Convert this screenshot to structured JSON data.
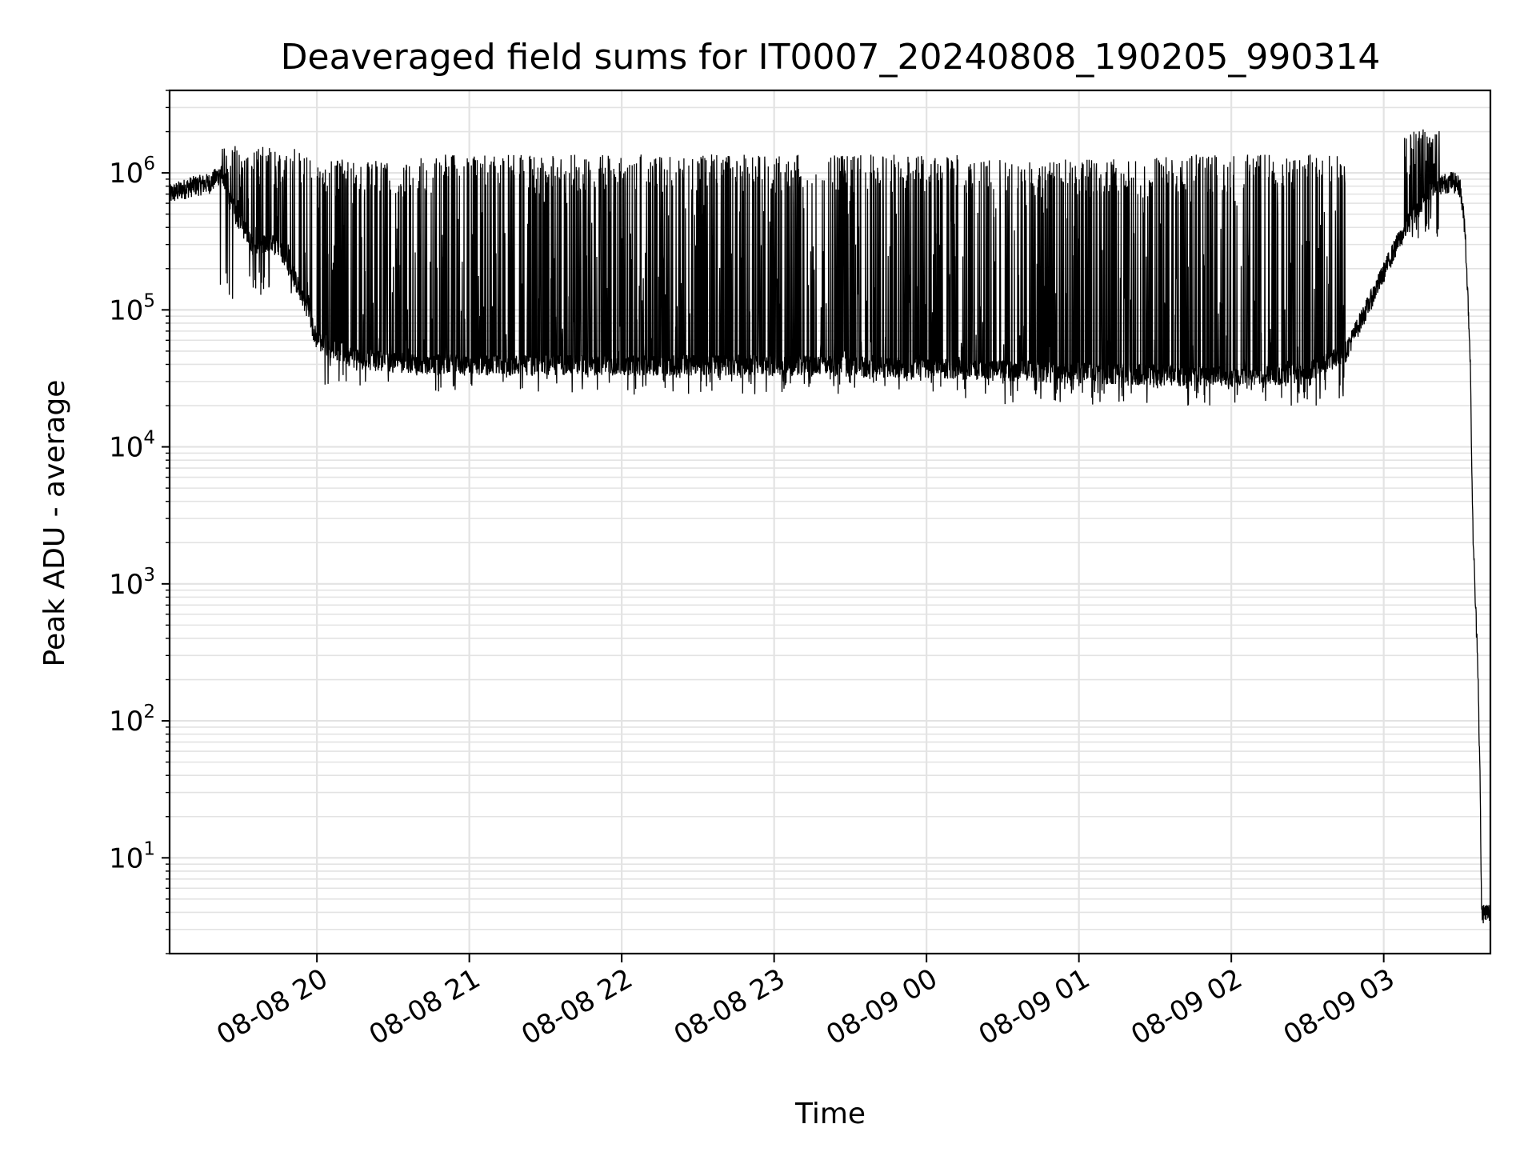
{
  "chart_data": {
    "type": "line",
    "title": "Deaveraged field sums for IT0007_20240808_190205_990314",
    "xlabel": "Time",
    "ylabel": "Peak ADU - average",
    "x_axis": {
      "kind": "time",
      "range": [
        "2024-08-08T19:02",
        "2024-08-09T03:42"
      ],
      "ticks": [
        {
          "t": "2024-08-08T20:00",
          "label": "08-08 20"
        },
        {
          "t": "2024-08-08T21:00",
          "label": "08-08 21"
        },
        {
          "t": "2024-08-08T22:00",
          "label": "08-08 22"
        },
        {
          "t": "2024-08-08T23:00",
          "label": "08-08 23"
        },
        {
          "t": "2024-08-09T00:00",
          "label": "08-09 00"
        },
        {
          "t": "2024-08-09T01:00",
          "label": "08-09 01"
        },
        {
          "t": "2024-08-09T02:00",
          "label": "08-09 02"
        },
        {
          "t": "2024-08-09T03:00",
          "label": "08-09 03"
        }
      ]
    },
    "y_axis": {
      "scale": "log",
      "range": [
        2,
        4000000
      ],
      "ticks": [
        {
          "value": 10,
          "base": "10",
          "exp": "1"
        },
        {
          "value": 100,
          "base": "10",
          "exp": "2"
        },
        {
          "value": 1000,
          "base": "10",
          "exp": "3"
        },
        {
          "value": 10000,
          "base": "10",
          "exp": "4"
        },
        {
          "value": 100000,
          "base": "10",
          "exp": "5"
        },
        {
          "value": 1000000,
          "base": "10",
          "exp": "6"
        }
      ]
    },
    "grid": true,
    "series": [
      {
        "color": "#000000",
        "baseline_points": [
          {
            "t": "2024-08-08T19:02",
            "y": 700000
          },
          {
            "t": "2024-08-08T19:10",
            "y": 800000
          },
          {
            "t": "2024-08-08T19:18",
            "y": 850000
          },
          {
            "t": "2024-08-08T19:22",
            "y": 1000000
          },
          {
            "t": "2024-08-08T19:28",
            "y": 500000
          },
          {
            "t": "2024-08-08T19:35",
            "y": 300000
          },
          {
            "t": "2024-08-08T19:45",
            "y": 300000
          },
          {
            "t": "2024-08-08T19:55",
            "y": 120000
          },
          {
            "t": "2024-08-08T20:00",
            "y": 60000
          },
          {
            "t": "2024-08-08T20:15",
            "y": 45000
          },
          {
            "t": "2024-08-08T20:30",
            "y": 42000
          },
          {
            "t": "2024-08-08T21:00",
            "y": 40000
          },
          {
            "t": "2024-08-08T22:00",
            "y": 40000
          },
          {
            "t": "2024-08-08T23:00",
            "y": 40000
          },
          {
            "t": "2024-08-09T00:00",
            "y": 38000
          },
          {
            "t": "2024-08-09T01:00",
            "y": 35000
          },
          {
            "t": "2024-08-09T02:00",
            "y": 33000
          },
          {
            "t": "2024-08-09T02:30",
            "y": 35000
          },
          {
            "t": "2024-08-09T02:45",
            "y": 50000
          },
          {
            "t": "2024-08-09T02:55",
            "y": 120000
          },
          {
            "t": "2024-08-09T03:05",
            "y": 300000
          },
          {
            "t": "2024-08-09T03:12",
            "y": 500000
          },
          {
            "t": "2024-08-09T03:20",
            "y": 800000
          },
          {
            "t": "2024-08-09T03:27",
            "y": 880000
          },
          {
            "t": "2024-08-09T03:30",
            "y": 800000
          },
          {
            "t": "2024-08-09T03:32",
            "y": 400000
          },
          {
            "t": "2024-08-09T03:34",
            "y": 50000
          },
          {
            "t": "2024-08-09T03:35",
            "y": 3000
          },
          {
            "t": "2024-08-09T03:36",
            "y": 800
          },
          {
            "t": "2024-08-09T03:37",
            "y": 300
          },
          {
            "t": "2024-08-09T03:38",
            "y": 30
          },
          {
            "t": "2024-08-09T03:38.5",
            "y": 4
          },
          {
            "t": "2024-08-09T03:42",
            "y": 4
          }
        ],
        "spike_windows": [
          {
            "start": "2024-08-08T19:22",
            "end": "2024-08-08T19:58",
            "peak": 1500000,
            "low": 150000
          },
          {
            "start": "2024-08-08T20:00",
            "end": "2024-08-08T20:40",
            "peak": 1200000,
            "low": 35000
          },
          {
            "start": "2024-08-08T20:40",
            "end": "2024-08-09T00:15",
            "peak": 1300000,
            "low": 30000
          },
          {
            "start": "2024-08-09T00:15",
            "end": "2024-08-09T01:30",
            "peak": 1200000,
            "low": 25000
          },
          {
            "start": "2024-08-09T01:30",
            "end": "2024-08-09T02:45",
            "peak": 1300000,
            "low": 25000
          },
          {
            "start": "2024-08-09T03:08",
            "end": "2024-08-09T03:22",
            "peak": 2000000,
            "low": 400000
          }
        ]
      }
    ]
  }
}
